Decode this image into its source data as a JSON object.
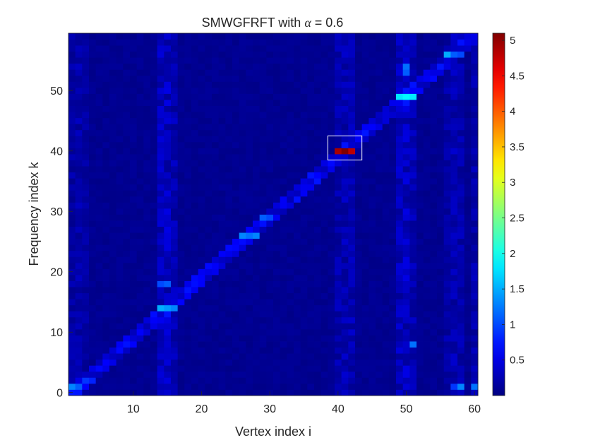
{
  "chart_data": {
    "type": "heatmap",
    "title": "SMWGFRFT with α = 0.6",
    "title_prefix": "SMWGFRFT with ",
    "title_symbol": "α",
    "title_suffix": " = 0.6",
    "xlabel": "Vertex index i",
    "ylabel": "Frequency index k",
    "xlim": [
      1,
      60
    ],
    "ylim": [
      0,
      59
    ],
    "x_ticks": [
      "10",
      "20",
      "30",
      "40",
      "50",
      "60"
    ],
    "y_ticks": [
      "0",
      "10",
      "20",
      "30",
      "40",
      "50"
    ],
    "colormap": "jet",
    "color_range": [
      0,
      5.1
    ],
    "colorbar_ticks": [
      "0.5",
      "1",
      "1.5",
      "2",
      "2.5",
      "3",
      "3.5",
      "4",
      "4.5",
      "5"
    ],
    "background_level": 0.1,
    "highlight_box": {
      "x_range": [
        39,
        43
      ],
      "y_range": [
        39,
        42
      ],
      "color": "#ffffff"
    },
    "peaks": [
      {
        "x": 41,
        "y": 40,
        "value": 5.1
      },
      {
        "x": 40,
        "y": 40,
        "value": 4.9
      },
      {
        "x": 42,
        "y": 40,
        "value": 4.8
      },
      {
        "x": 49,
        "y": 49,
        "value": 1.8
      },
      {
        "x": 50,
        "y": 49,
        "value": 1.9
      },
      {
        "x": 51,
        "y": 49,
        "value": 1.8
      },
      {
        "x": 14,
        "y": 14,
        "value": 1.5
      },
      {
        "x": 15,
        "y": 14,
        "value": 1.4
      },
      {
        "x": 16,
        "y": 14,
        "value": 1.3
      },
      {
        "x": 26,
        "y": 26,
        "value": 1.3
      },
      {
        "x": 27,
        "y": 26,
        "value": 1.2
      },
      {
        "x": 28,
        "y": 26,
        "value": 1.3
      },
      {
        "x": 56,
        "y": 56,
        "value": 1.5
      },
      {
        "x": 57,
        "y": 56,
        "value": 1.1
      },
      {
        "x": 58,
        "y": 56,
        "value": 1.0
      },
      {
        "x": 1,
        "y": 1,
        "value": 1.3
      },
      {
        "x": 2,
        "y": 1,
        "value": 1.1
      },
      {
        "x": 58,
        "y": 1,
        "value": 1.3
      },
      {
        "x": 60,
        "y": 1,
        "value": 1.2
      },
      {
        "x": 50,
        "y": 54,
        "value": 1.2
      },
      {
        "x": 50,
        "y": 53,
        "value": 1.1
      },
      {
        "x": 51,
        "y": 8,
        "value": 1.2
      },
      {
        "x": 15,
        "y": 18,
        "value": 1.1
      },
      {
        "x": 14,
        "y": 18,
        "value": 1.0
      },
      {
        "x": 29,
        "y": 29,
        "value": 1.1
      },
      {
        "x": 30,
        "y": 29,
        "value": 1.0
      },
      {
        "x": 57,
        "y": 1,
        "value": 0.9
      },
      {
        "x": 3,
        "y": 2,
        "value": 0.9
      },
      {
        "x": 4,
        "y": 2,
        "value": 0.8
      }
    ],
    "diagonal_level": 0.75,
    "column_bands": [
      {
        "x": 14,
        "level": 0.4
      },
      {
        "x": 15,
        "level": 0.45
      },
      {
        "x": 16,
        "level": 0.35
      },
      {
        "x": 41,
        "level": 0.35
      },
      {
        "x": 42,
        "level": 0.35
      },
      {
        "x": 40,
        "level": 0.3
      },
      {
        "x": 49,
        "level": 0.4
      },
      {
        "x": 50,
        "level": 0.45
      },
      {
        "x": 51,
        "level": 0.35
      },
      {
        "x": 57,
        "level": 0.35
      },
      {
        "x": 58,
        "level": 0.3
      },
      {
        "x": 56,
        "level": 0.28
      },
      {
        "x": 60,
        "level": 0.3
      },
      {
        "x": 2,
        "level": 0.3
      },
      {
        "x": 1,
        "level": 0.25
      },
      {
        "x": 3,
        "level": 0.22
      }
    ]
  }
}
